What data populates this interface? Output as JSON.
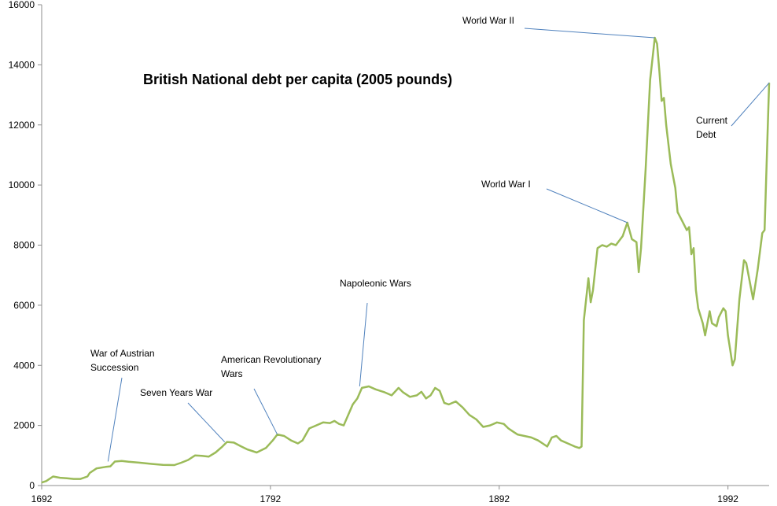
{
  "chart_data": {
    "type": "line",
    "title": "British National debt per capita (2005 pounds)",
    "xlabel": "",
    "ylabel": "",
    "xlim": [
      1692,
      2010
    ],
    "ylim": [
      0,
      16000
    ],
    "grid": false,
    "x_ticks": [
      "1692",
      "1792",
      "1892",
      "1992"
    ],
    "y_ticks": [
      "0",
      "2000",
      "4000",
      "6000",
      "8000",
      "10000",
      "12000",
      "14000",
      "16000"
    ],
    "colors": {
      "line": "#9bbb59",
      "axis": "#8c8c8c",
      "leader": "#4f81bd"
    },
    "series": [
      {
        "name": "",
        "points": [
          [
            1692,
            100
          ],
          [
            1694,
            150
          ],
          [
            1697,
            300
          ],
          [
            1700,
            260
          ],
          [
            1703,
            240
          ],
          [
            1706,
            220
          ],
          [
            1709,
            220
          ],
          [
            1712,
            300
          ],
          [
            1713,
            420
          ],
          [
            1716,
            570
          ],
          [
            1720,
            620
          ],
          [
            1722,
            640
          ],
          [
            1724,
            800
          ],
          [
            1727,
            820
          ],
          [
            1730,
            790
          ],
          [
            1735,
            760
          ],
          [
            1740,
            720
          ],
          [
            1745,
            690
          ],
          [
            1750,
            680
          ],
          [
            1753,
            760
          ],
          [
            1756,
            850
          ],
          [
            1759,
            1000
          ],
          [
            1762,
            990
          ],
          [
            1765,
            960
          ],
          [
            1768,
            1100
          ],
          [
            1771,
            1300
          ],
          [
            1773,
            1450
          ],
          [
            1776,
            1430
          ],
          [
            1779,
            1310
          ],
          [
            1782,
            1200
          ],
          [
            1786,
            1100
          ],
          [
            1790,
            1250
          ],
          [
            1793,
            1500
          ],
          [
            1795,
            1700
          ],
          [
            1798,
            1650
          ],
          [
            1801,
            1500
          ],
          [
            1804,
            1400
          ],
          [
            1806,
            1500
          ],
          [
            1809,
            1900
          ],
          [
            1812,
            2000
          ],
          [
            1815,
            2100
          ],
          [
            1818,
            2080
          ],
          [
            1820,
            2150
          ],
          [
            1822,
            2050
          ],
          [
            1824,
            2000
          ],
          [
            1826,
            2350
          ],
          [
            1828,
            2700
          ],
          [
            1830,
            2900
          ],
          [
            1832,
            3250
          ],
          [
            1835,
            3300
          ],
          [
            1838,
            3200
          ],
          [
            1842,
            3100
          ],
          [
            1845,
            3000
          ],
          [
            1848,
            3250
          ],
          [
            1850,
            3100
          ],
          [
            1853,
            2950
          ],
          [
            1856,
            3000
          ],
          [
            1858,
            3120
          ],
          [
            1860,
            2900
          ],
          [
            1862,
            3000
          ],
          [
            1864,
            3250
          ],
          [
            1866,
            3150
          ],
          [
            1868,
            2750
          ],
          [
            1870,
            2700
          ],
          [
            1873,
            2800
          ],
          [
            1876,
            2600
          ],
          [
            1879,
            2350
          ],
          [
            1882,
            2200
          ],
          [
            1885,
            1950
          ],
          [
            1888,
            2000
          ],
          [
            1891,
            2100
          ],
          [
            1894,
            2050
          ],
          [
            1896,
            1900
          ],
          [
            1898,
            1800
          ],
          [
            1900,
            1700
          ],
          [
            1903,
            1650
          ],
          [
            1906,
            1600
          ],
          [
            1909,
            1500
          ],
          [
            1911,
            1400
          ],
          [
            1913,
            1300
          ],
          [
            1915,
            1600
          ],
          [
            1917,
            1650
          ],
          [
            1919,
            1500
          ],
          [
            1922,
            1400
          ],
          [
            1925,
            1300
          ],
          [
            1927,
            1250
          ],
          [
            1928,
            1300
          ],
          [
            1929,
            5500
          ],
          [
            1931,
            6900
          ],
          [
            1932,
            6100
          ],
          [
            1933,
            6500
          ],
          [
            1935,
            7900
          ],
          [
            1937,
            8000
          ],
          [
            1939,
            7950
          ],
          [
            1941,
            8050
          ],
          [
            1943,
            8000
          ],
          [
            1946,
            8300
          ],
          [
            1948,
            8750
          ],
          [
            1950,
            8200
          ],
          [
            1952,
            8100
          ],
          [
            1953,
            7100
          ],
          [
            1954,
            7900
          ],
          [
            1956,
            10500
          ],
          [
            1958,
            13500
          ],
          [
            1960,
            14900
          ],
          [
            1961,
            14700
          ],
          [
            1962,
            13800
          ],
          [
            1963,
            12800
          ],
          [
            1964,
            12900
          ],
          [
            1965,
            12000
          ],
          [
            1967,
            10700
          ],
          [
            1969,
            9900
          ],
          [
            1970,
            9100
          ],
          [
            1972,
            8800
          ],
          [
            1974,
            8500
          ],
          [
            1975,
            8600
          ],
          [
            1976,
            7700
          ],
          [
            1977,
            7900
          ],
          [
            1978,
            6500
          ],
          [
            1979,
            5900
          ],
          [
            1981,
            5400
          ],
          [
            1982,
            5000
          ],
          [
            1984,
            5800
          ],
          [
            1985,
            5400
          ],
          [
            1987,
            5300
          ],
          [
            1988,
            5600
          ],
          [
            1990,
            5900
          ],
          [
            1991,
            5800
          ],
          [
            1992,
            5000
          ],
          [
            1993,
            4500
          ],
          [
            1994,
            4000
          ],
          [
            1995,
            4200
          ],
          [
            1997,
            6200
          ],
          [
            1999,
            7500
          ],
          [
            2000,
            7400
          ],
          [
            2002,
            6600
          ],
          [
            2003,
            6200
          ],
          [
            2005,
            7200
          ],
          [
            2007,
            8400
          ],
          [
            2008,
            8500
          ],
          [
            2010,
            13400
          ]
        ]
      }
    ],
    "annotations": [
      {
        "text": [
          "World War II"
        ],
        "x": 1960,
        "y": 14900
      },
      {
        "text": [
          "Current",
          "Debt"
        ],
        "x": 2010,
        "y": 13400
      },
      {
        "text": [
          "World War I"
        ],
        "x": 1948,
        "y": 8750
      },
      {
        "text": [
          "Napoleonic Wars"
        ],
        "x": 1831,
        "y": 3300
      },
      {
        "text": [
          "American Revolutionary",
          "Wars"
        ],
        "x": 1795,
        "y": 1700
      },
      {
        "text": [
          "Seven Years War"
        ],
        "x": 1772,
        "y": 1450
      },
      {
        "text": [
          "War of Austrian",
          "Succession"
        ],
        "x": 1721,
        "y": 800
      }
    ]
  }
}
